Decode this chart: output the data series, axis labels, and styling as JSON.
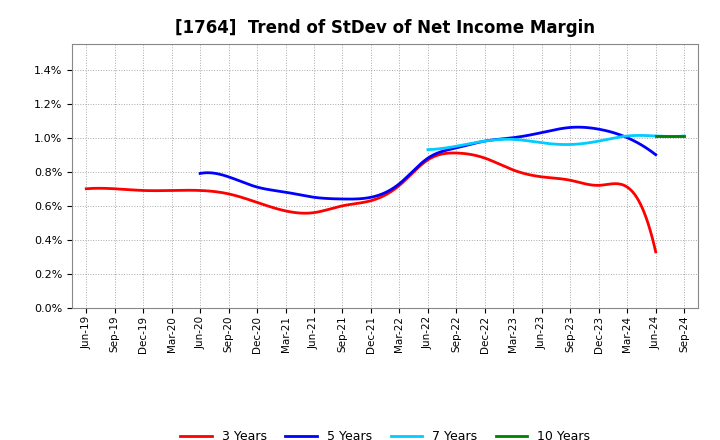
{
  "title": "[1764]  Trend of StDev of Net Income Margin",
  "x_labels": [
    "Jun-19",
    "Sep-19",
    "Dec-19",
    "Mar-20",
    "Jun-20",
    "Sep-20",
    "Dec-20",
    "Mar-21",
    "Jun-21",
    "Sep-21",
    "Dec-21",
    "Mar-22",
    "Jun-22",
    "Sep-22",
    "Dec-22",
    "Mar-23",
    "Jun-23",
    "Sep-23",
    "Dec-23",
    "Mar-24",
    "Jun-24",
    "Sep-24"
  ],
  "y3": [
    0.007,
    0.007,
    0.0069,
    0.0069,
    0.0069,
    0.0067,
    0.0062,
    0.0057,
    0.0056,
    0.006,
    0.0063,
    0.0072,
    0.0087,
    0.0091,
    0.0088,
    0.0081,
    0.0077,
    0.0075,
    0.0072,
    0.0071,
    0.0033,
    null
  ],
  "y5": [
    null,
    null,
    null,
    null,
    0.0079,
    0.0077,
    0.0071,
    0.0068,
    0.0065,
    0.0064,
    0.0065,
    0.0073,
    0.0088,
    0.0094,
    0.0098,
    0.01,
    0.0103,
    0.0106,
    0.0105,
    0.01,
    0.009,
    null
  ],
  "y7": [
    null,
    null,
    null,
    null,
    null,
    null,
    null,
    null,
    null,
    null,
    null,
    null,
    0.0093,
    0.0095,
    0.0098,
    0.0099,
    0.0097,
    0.0096,
    0.0098,
    0.0101,
    0.0101,
    0.0101
  ],
  "y10": [
    null,
    null,
    null,
    null,
    null,
    null,
    null,
    null,
    null,
    null,
    null,
    null,
    null,
    null,
    null,
    null,
    null,
    null,
    null,
    null,
    0.0101,
    0.0101
  ],
  "color_3y": "#FF0000",
  "color_5y": "#0000FF",
  "color_7y": "#00CCFF",
  "color_10y": "#008000",
  "ylim": [
    0.0,
    0.0155
  ],
  "yticks": [
    0.0,
    0.002,
    0.004,
    0.006,
    0.008,
    0.01,
    0.012,
    0.014
  ],
  "background_color": "#FFFFFF",
  "plot_bg_color": "#FFFFFF",
  "grid_color": "#AAAAAA",
  "linewidth": 2.0
}
